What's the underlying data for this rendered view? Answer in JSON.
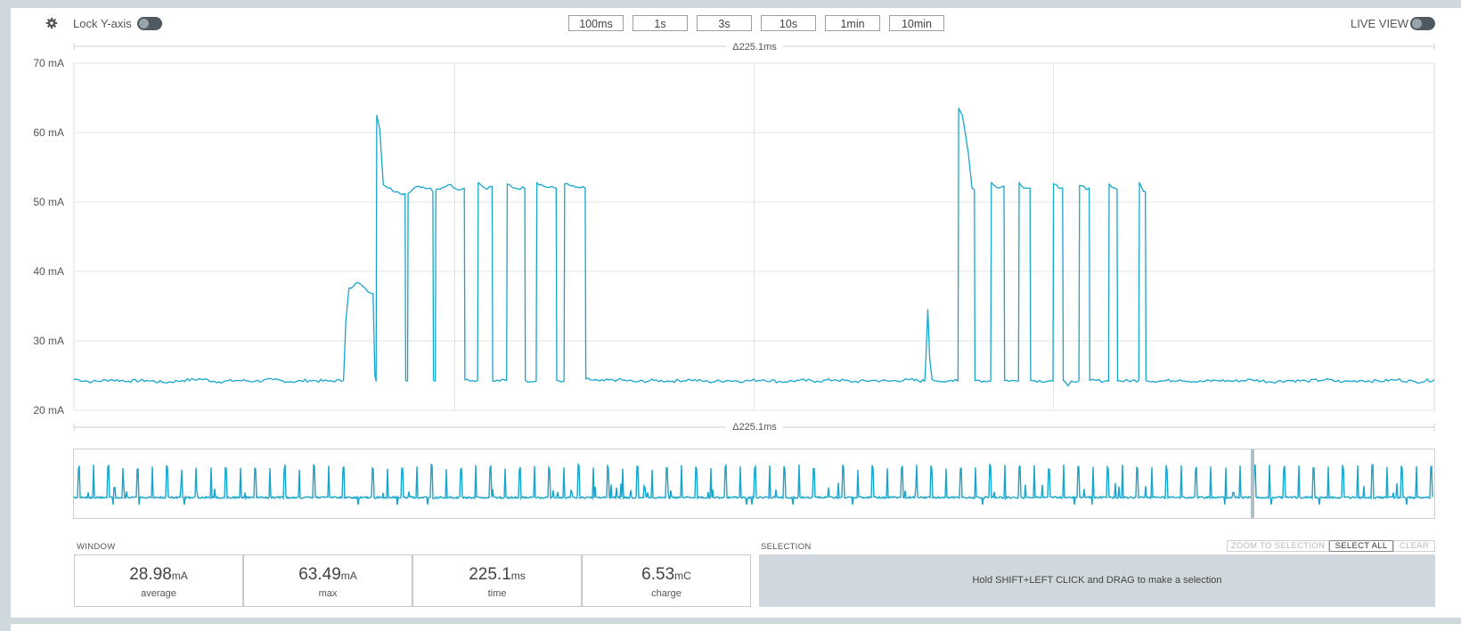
{
  "toolbar": {
    "lock_label": "Lock Y-axis",
    "time_buttons": [
      "100ms",
      "1s",
      "3s",
      "10s",
      "1min",
      "10min"
    ],
    "live_label": "LIVE VIEW"
  },
  "delta_top": "Δ225.1ms",
  "delta_bottom": "Δ225.1ms",
  "chart_data": {
    "type": "line",
    "ylabel_unit": "mA",
    "ylim": [
      20,
      70
    ],
    "yticks": [
      "70 mA",
      "60 mA",
      "50 mA",
      "40 mA",
      "30 mA",
      "20 mA"
    ],
    "grid": true,
    "x_range_ms": 225.1,
    "baseline": 24.2,
    "series": [
      {
        "color": "#16a6cd",
        "points": [
          [
            0,
            24.5
          ],
          [
            3,
            24.1
          ],
          [
            6,
            24.4
          ],
          [
            9,
            24.2
          ],
          [
            12,
            24.3
          ],
          [
            15,
            24.0
          ],
          [
            18,
            24.3
          ],
          [
            21,
            24.5
          ],
          [
            24,
            24.1
          ],
          [
            27,
            24.3
          ],
          [
            30,
            24.2
          ],
          [
            33,
            24.4
          ],
          [
            36,
            24.1
          ],
          [
            39,
            24.3
          ],
          [
            42,
            24.2
          ],
          [
            44.6,
            24.3
          ],
          [
            45.0,
            33
          ],
          [
            45.5,
            37.6
          ],
          [
            47,
            38.4
          ],
          [
            48.5,
            37.2
          ],
          [
            49.5,
            36.8
          ],
          [
            49.8,
            25
          ],
          [
            50.0,
            24.2
          ],
          [
            50.1,
            62.5
          ],
          [
            50.6,
            60.5
          ],
          [
            51.0,
            55
          ],
          [
            51.2,
            52.5
          ],
          [
            52,
            52
          ],
          [
            53.5,
            51.5
          ],
          [
            54.8,
            51.2
          ],
          [
            54.9,
            24.3
          ],
          [
            55.2,
            24.2
          ],
          [
            55.3,
            51.2
          ],
          [
            57,
            52.3
          ],
          [
            59,
            52
          ],
          [
            59.4,
            51.5
          ],
          [
            59.5,
            24.3
          ],
          [
            59.8,
            24.2
          ],
          [
            59.9,
            51.8
          ],
          [
            62,
            52.5
          ],
          [
            64,
            51.8
          ],
          [
            64.6,
            52
          ],
          [
            64.7,
            24.4
          ],
          [
            66.8,
            24.3
          ],
          [
            66.9,
            52.8
          ],
          [
            68,
            52
          ],
          [
            69.2,
            52.2
          ],
          [
            69.3,
            24.2
          ],
          [
            71.6,
            24.3
          ],
          [
            71.7,
            52.6
          ],
          [
            73,
            52
          ],
          [
            74.6,
            52
          ],
          [
            74.7,
            24.3
          ],
          [
            76.5,
            24.2
          ],
          [
            76.6,
            52.8
          ],
          [
            78,
            52.2
          ],
          [
            79.8,
            52
          ],
          [
            79.9,
            24.3
          ],
          [
            81.1,
            24.2
          ],
          [
            81.2,
            52.6
          ],
          [
            83,
            52.1
          ],
          [
            84.6,
            52
          ],
          [
            84.7,
            24.5
          ],
          [
            87,
            24.2
          ],
          [
            90,
            24.4
          ],
          [
            93,
            24.1
          ],
          [
            96,
            24.3
          ],
          [
            99,
            24.2
          ],
          [
            102,
            24.4
          ],
          [
            105,
            24.1
          ],
          [
            108,
            24.3
          ],
          [
            111,
            24.2
          ],
          [
            114,
            24.4
          ],
          [
            117,
            24.1
          ],
          [
            120,
            24.3
          ],
          [
            123,
            24.2
          ],
          [
            126,
            24.4
          ],
          [
            129,
            24.1
          ],
          [
            132,
            24.3
          ],
          [
            135,
            24.2
          ],
          [
            138,
            24.4
          ],
          [
            140.8,
            24.2
          ],
          [
            141.0,
            28
          ],
          [
            141.3,
            34.5
          ],
          [
            141.6,
            27.5
          ],
          [
            142.0,
            24.4
          ],
          [
            143,
            24.2
          ],
          [
            145,
            24.3
          ],
          [
            146.3,
            24.2
          ],
          [
            146.4,
            63.5
          ],
          [
            147,
            62.5
          ],
          [
            148,
            57
          ],
          [
            148.6,
            52
          ],
          [
            149,
            51.8
          ],
          [
            149.1,
            24.3
          ],
          [
            151.7,
            24.2
          ],
          [
            151.8,
            52.8
          ],
          [
            153,
            52
          ],
          [
            153.9,
            52.3
          ],
          [
            154.0,
            24.3
          ],
          [
            156.3,
            24.2
          ],
          [
            156.4,
            52.8
          ],
          [
            157.5,
            52
          ],
          [
            158.2,
            52
          ],
          [
            158.3,
            24.3
          ],
          [
            162.0,
            24.2
          ],
          [
            162.1,
            52.6
          ],
          [
            163,
            52
          ],
          [
            163.6,
            52
          ],
          [
            163.7,
            24.3
          ],
          [
            164.5,
            23.5
          ],
          [
            165.0,
            24.2
          ],
          [
            166.3,
            24.3
          ],
          [
            166.4,
            52.4
          ],
          [
            167.5,
            51.8
          ],
          [
            168.0,
            52
          ],
          [
            168.1,
            24.3
          ],
          [
            171.2,
            24.2
          ],
          [
            171.3,
            52.6
          ],
          [
            172.3,
            52
          ],
          [
            172.6,
            51.8
          ],
          [
            172.7,
            24.2
          ],
          [
            176.2,
            24.3
          ],
          [
            176.3,
            52.8
          ],
          [
            177,
            51.5
          ],
          [
            177.3,
            51.5
          ],
          [
            177.4,
            24.3
          ],
          [
            180,
            24.2
          ],
          [
            183,
            24.4
          ],
          [
            186,
            24.1
          ],
          [
            189,
            24.3
          ],
          [
            192,
            24.2
          ],
          [
            195,
            24.4
          ],
          [
            198,
            24.1
          ],
          [
            201,
            24.3
          ],
          [
            204,
            24.2
          ],
          [
            207,
            24.4
          ],
          [
            210,
            24.1
          ],
          [
            213,
            24.3
          ],
          [
            216,
            24.2
          ],
          [
            219,
            24.4
          ],
          [
            222,
            24.1
          ],
          [
            225.1,
            24.4
          ]
        ]
      }
    ]
  },
  "overview": {
    "color": "#16a6cd"
  },
  "window": {
    "title": "WINDOW",
    "stats": [
      {
        "value": "28.98",
        "unit": "mA",
        "label": "average"
      },
      {
        "value": "63.49",
        "unit": "mA",
        "label": "max"
      },
      {
        "value": "225.1",
        "unit": "ms",
        "label": "time"
      },
      {
        "value": "6.53",
        "unit": "mC",
        "label": "charge"
      }
    ]
  },
  "selection": {
    "title": "SELECTION",
    "zoom_label": "ZOOM TO SELECTION",
    "select_all_label": "SELECT ALL",
    "clear_label": "CLEAR",
    "hint": "Hold SHIFT+LEFT CLICK and DRAG to make a selection"
  }
}
